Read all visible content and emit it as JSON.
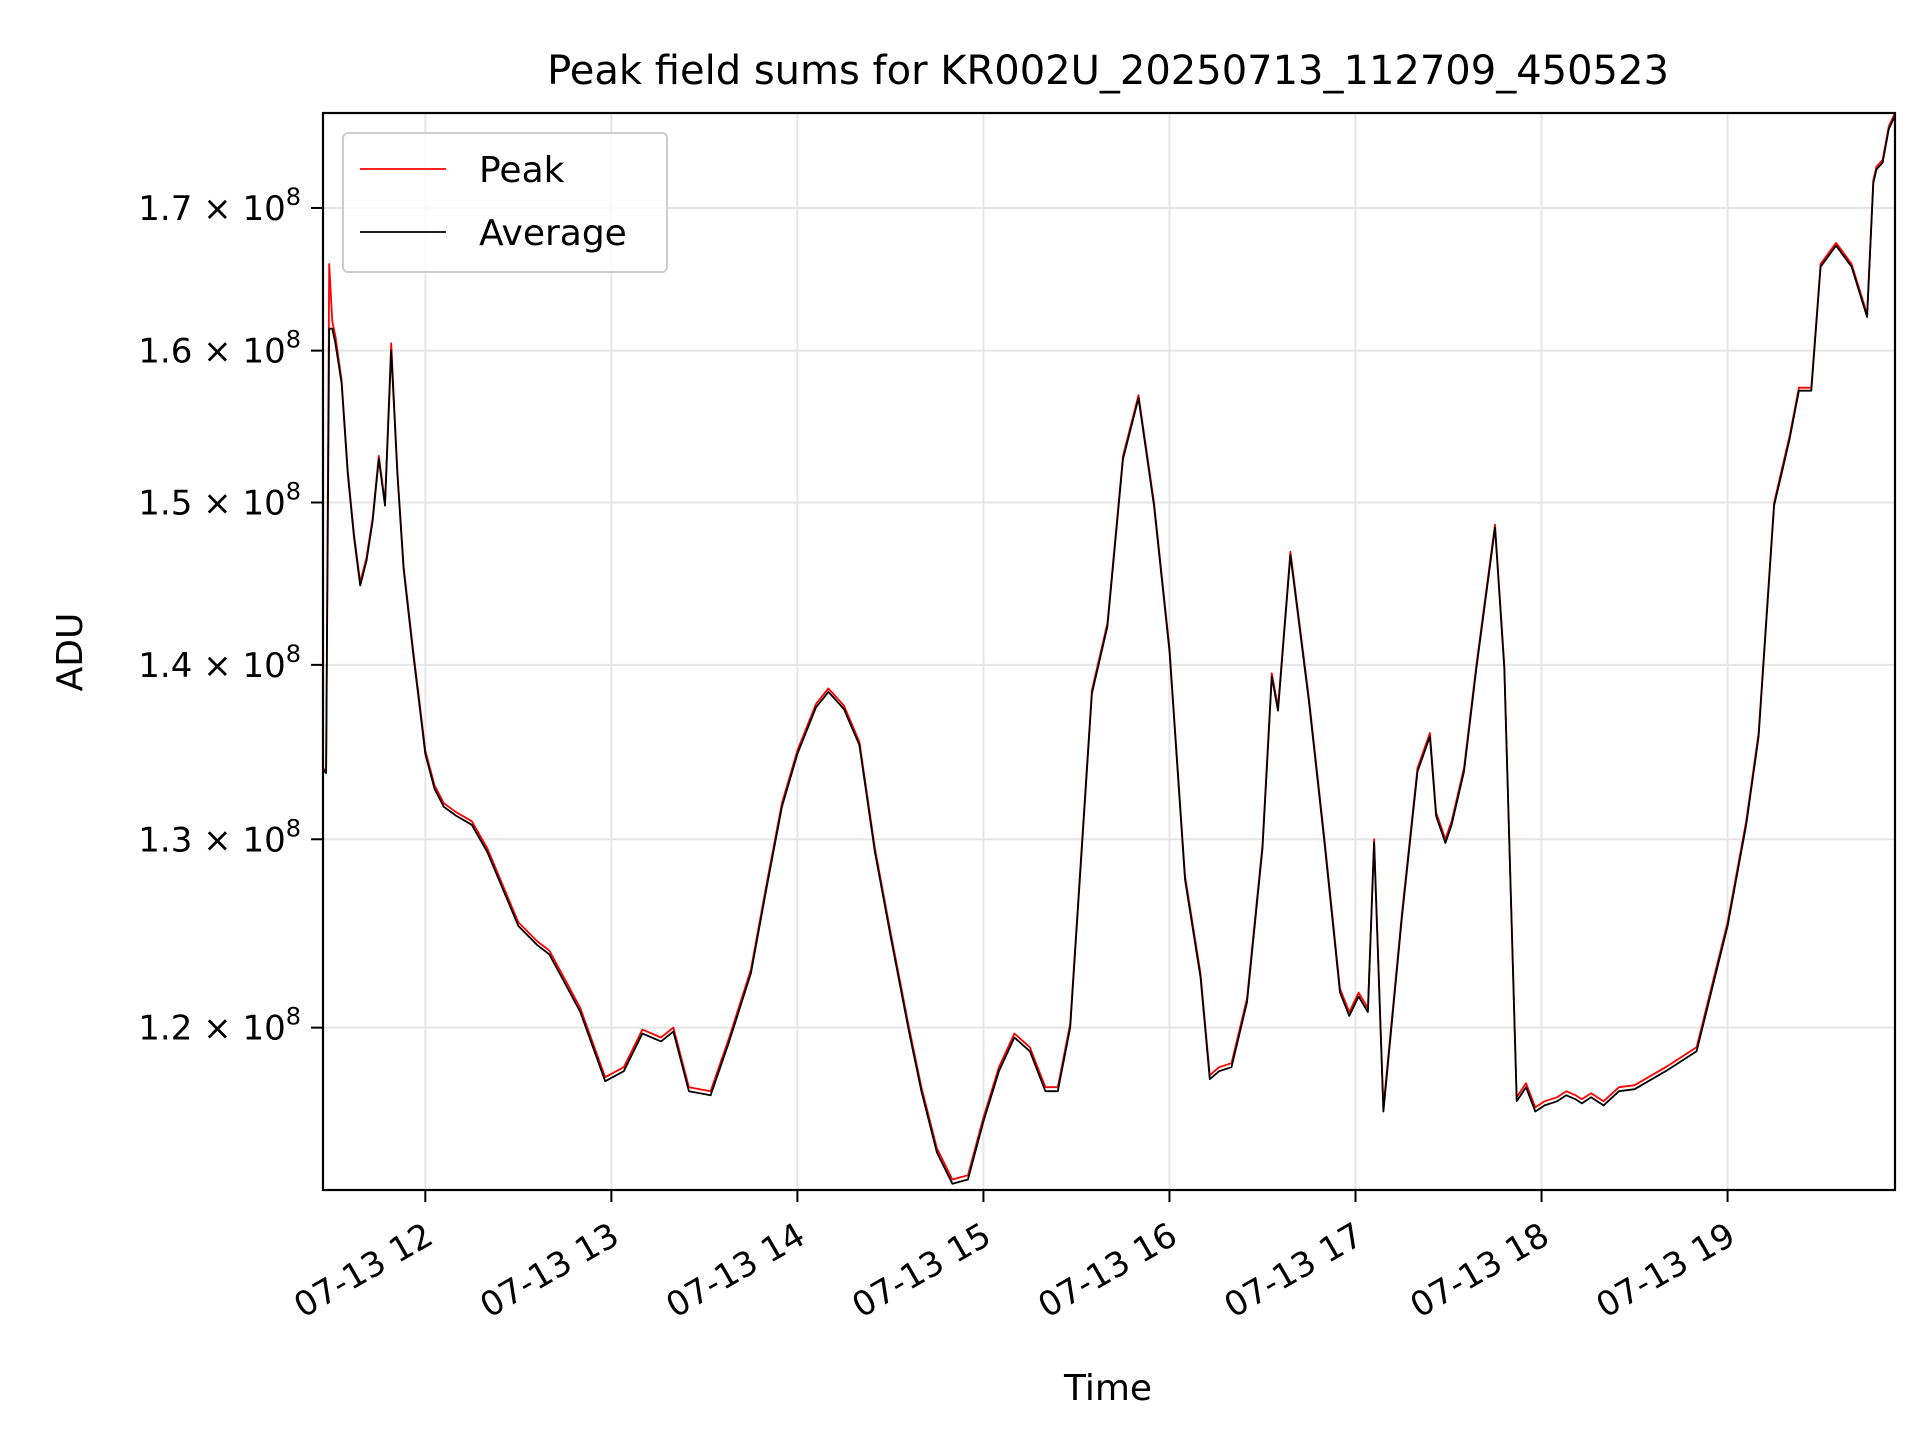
{
  "chart_data": {
    "type": "line",
    "title": "Peak field sums for KR002U_20250713_112709_450523",
    "xlabel": "Time",
    "ylabel": "ADU",
    "yscale": "log",
    "xlim": [
      "2025-07-13 11:27",
      "2025-07-13 19:54"
    ],
    "ylim": [
      112000000,
      177000000
    ],
    "grid": true,
    "legend": "top-left",
    "x_ticks": [
      {
        "value": "2025-07-13 12:00",
        "label": "07-13 12"
      },
      {
        "value": "2025-07-13 13:00",
        "label": "07-13 13"
      },
      {
        "value": "2025-07-13 14:00",
        "label": "07-13 14"
      },
      {
        "value": "2025-07-13 15:00",
        "label": "07-13 15"
      },
      {
        "value": "2025-07-13 16:00",
        "label": "07-13 16"
      },
      {
        "value": "2025-07-13 17:00",
        "label": "07-13 17"
      },
      {
        "value": "2025-07-13 18:00",
        "label": "07-13 18"
      },
      {
        "value": "2025-07-13 19:00",
        "label": "07-13 19"
      }
    ],
    "y_ticks": [
      {
        "value": 120000000,
        "mantissa": "1.2",
        "base": "10",
        "exponent": "8"
      },
      {
        "value": 130000000,
        "mantissa": "1.3",
        "base": "10",
        "exponent": "8"
      },
      {
        "value": 140000000,
        "mantissa": "1.4",
        "base": "10",
        "exponent": "8"
      },
      {
        "value": 150000000,
        "mantissa": "1.5",
        "base": "10",
        "exponent": "8"
      },
      {
        "value": 160000000,
        "mantissa": "1.6",
        "base": "10",
        "exponent": "8"
      },
      {
        "value": 170000000,
        "mantissa": "1.7",
        "base": "10",
        "exponent": "8"
      }
    ],
    "series": [
      {
        "name": "Peak",
        "color": "#ff0000",
        "x": [
          "2025-07-13 11:27",
          "2025-07-13 11:28",
          "2025-07-13 11:29",
          "2025-07-13 11:30",
          "2025-07-13 11:31",
          "2025-07-13 11:33",
          "2025-07-13 11:35",
          "2025-07-13 11:37",
          "2025-07-13 11:39",
          "2025-07-13 11:41",
          "2025-07-13 11:43",
          "2025-07-13 11:45",
          "2025-07-13 11:47",
          "2025-07-13 11:49",
          "2025-07-13 11:51",
          "2025-07-13 11:53",
          "2025-07-13 11:56",
          "2025-07-13 11:58",
          "2025-07-13 12:00",
          "2025-07-13 12:03",
          "2025-07-13 12:06",
          "2025-07-13 12:10",
          "2025-07-13 12:15",
          "2025-07-13 12:20",
          "2025-07-13 12:30",
          "2025-07-13 12:36",
          "2025-07-13 12:40",
          "2025-07-13 12:45",
          "2025-07-13 12:50",
          "2025-07-13 12:58",
          "2025-07-13 13:04",
          "2025-07-13 13:10",
          "2025-07-13 13:16",
          "2025-07-13 13:20",
          "2025-07-13 13:25",
          "2025-07-13 13:32",
          "2025-07-13 13:38",
          "2025-07-13 13:45",
          "2025-07-13 13:50",
          "2025-07-13 13:55",
          "2025-07-13 14:00",
          "2025-07-13 14:06",
          "2025-07-13 14:10",
          "2025-07-13 14:15",
          "2025-07-13 14:20",
          "2025-07-13 14:25",
          "2025-07-13 14:30",
          "2025-07-13 14:36",
          "2025-07-13 14:40",
          "2025-07-13 14:45",
          "2025-07-13 14:50",
          "2025-07-13 14:55",
          "2025-07-13 15:00",
          "2025-07-13 15:05",
          "2025-07-13 15:10",
          "2025-07-13 15:15",
          "2025-07-13 15:20",
          "2025-07-13 15:24",
          "2025-07-13 15:28",
          "2025-07-13 15:35",
          "2025-07-13 15:40",
          "2025-07-13 15:45",
          "2025-07-13 15:50",
          "2025-07-13 15:55",
          "2025-07-13 16:00",
          "2025-07-13 16:05",
          "2025-07-13 16:10",
          "2025-07-13 16:13",
          "2025-07-13 16:16",
          "2025-07-13 16:20",
          "2025-07-13 16:25",
          "2025-07-13 16:30",
          "2025-07-13 16:33",
          "2025-07-13 16:35",
          "2025-07-13 16:39",
          "2025-07-13 16:45",
          "2025-07-13 16:50",
          "2025-07-13 16:55",
          "2025-07-13 16:58",
          "2025-07-13 17:01",
          "2025-07-13 17:04",
          "2025-07-13 17:06",
          "2025-07-13 17:09",
          "2025-07-13 17:15",
          "2025-07-13 17:20",
          "2025-07-13 17:24",
          "2025-07-13 17:26",
          "2025-07-13 17:29",
          "2025-07-13 17:31",
          "2025-07-13 17:35",
          "2025-07-13 17:39",
          "2025-07-13 17:45",
          "2025-07-13 17:48",
          "2025-07-13 17:52",
          "2025-07-13 17:55",
          "2025-07-13 17:58",
          "2025-07-13 18:01",
          "2025-07-13 18:05",
          "2025-07-13 18:08",
          "2025-07-13 18:11",
          "2025-07-13 18:13",
          "2025-07-13 18:16",
          "2025-07-13 18:20",
          "2025-07-13 18:25",
          "2025-07-13 18:30",
          "2025-07-13 18:40",
          "2025-07-13 18:50",
          "2025-07-13 19:00",
          "2025-07-13 19:06",
          "2025-07-13 19:10",
          "2025-07-13 19:15",
          "2025-07-13 19:20",
          "2025-07-13 19:23",
          "2025-07-13 19:27",
          "2025-07-13 19:30",
          "2025-07-13 19:35",
          "2025-07-13 19:40",
          "2025-07-13 19:45",
          "2025-07-13 19:47",
          "2025-07-13 19:48",
          "2025-07-13 19:50",
          "2025-07-13 19:52",
          "2025-07-13 19:54"
        ],
        "y": [
          134000000,
          133800000,
          166000000,
          162000000,
          161000000,
          158000000,
          152000000,
          148000000,
          145000000,
          146500000,
          149000000,
          153000000,
          150000000,
          160500000,
          152000000,
          146000000,
          141000000,
          138000000,
          135000000,
          133000000,
          132000000,
          131500000,
          131000000,
          129500000,
          125500000,
          124500000,
          124000000,
          122500000,
          121000000,
          117500000,
          118000000,
          119900000,
          119500000,
          120000000,
          117000000,
          116800000,
          119500000,
          123000000,
          127500000,
          132000000,
          135000000,
          137700000,
          138600000,
          137600000,
          135500000,
          129500000,
          125000000,
          120000000,
          117000000,
          114000000,
          112500000,
          112700000,
          115500000,
          118000000,
          119700000,
          119000000,
          117000000,
          117000000,
          120200000,
          138500000,
          142500000,
          153000000,
          157000000,
          150000000,
          141000000,
          128000000,
          122800000,
          117600000,
          118000000,
          118200000,
          121500000,
          129700000,
          139500000,
          137500000,
          146900000,
          138000000,
          130000000,
          122000000,
          120800000,
          121800000,
          121000000,
          130000000,
          116000000,
          126000000,
          134000000,
          136000000,
          131500000,
          130000000,
          131000000,
          134000000,
          140000000,
          148600000,
          140000000,
          116500000,
          117200000,
          116000000,
          116300000,
          116500000,
          116800000,
          116600000,
          116400000,
          116700000,
          116300000,
          117000000,
          117100000,
          118000000,
          119000000,
          125500000,
          131000000,
          136000000,
          150000000,
          154300000,
          157500000,
          157500000,
          166000000,
          167500000,
          166000000,
          162500000,
          172000000,
          173000000,
          173500000,
          176000000,
          177000000
        ]
      },
      {
        "name": "Average",
        "color": "#000000",
        "x": [
          "2025-07-13 11:27",
          "2025-07-13 11:28",
          "2025-07-13 11:29",
          "2025-07-13 11:30",
          "2025-07-13 11:31",
          "2025-07-13 11:33",
          "2025-07-13 11:35",
          "2025-07-13 11:37",
          "2025-07-13 11:39",
          "2025-07-13 11:41",
          "2025-07-13 11:43",
          "2025-07-13 11:45",
          "2025-07-13 11:47",
          "2025-07-13 11:49",
          "2025-07-13 11:51",
          "2025-07-13 11:53",
          "2025-07-13 11:56",
          "2025-07-13 11:58",
          "2025-07-13 12:00",
          "2025-07-13 12:03",
          "2025-07-13 12:06",
          "2025-07-13 12:10",
          "2025-07-13 12:15",
          "2025-07-13 12:20",
          "2025-07-13 12:30",
          "2025-07-13 12:36",
          "2025-07-13 12:40",
          "2025-07-13 12:45",
          "2025-07-13 12:50",
          "2025-07-13 12:58",
          "2025-07-13 13:04",
          "2025-07-13 13:10",
          "2025-07-13 13:16",
          "2025-07-13 13:20",
          "2025-07-13 13:25",
          "2025-07-13 13:32",
          "2025-07-13 13:38",
          "2025-07-13 13:45",
          "2025-07-13 13:50",
          "2025-07-13 13:55",
          "2025-07-13 14:00",
          "2025-07-13 14:06",
          "2025-07-13 14:10",
          "2025-07-13 14:15",
          "2025-07-13 14:20",
          "2025-07-13 14:25",
          "2025-07-13 14:30",
          "2025-07-13 14:36",
          "2025-07-13 14:40",
          "2025-07-13 14:45",
          "2025-07-13 14:50",
          "2025-07-13 14:55",
          "2025-07-13 15:00",
          "2025-07-13 15:05",
          "2025-07-13 15:10",
          "2025-07-13 15:15",
          "2025-07-13 15:20",
          "2025-07-13 15:24",
          "2025-07-13 15:28",
          "2025-07-13 15:35",
          "2025-07-13 15:40",
          "2025-07-13 15:45",
          "2025-07-13 15:50",
          "2025-07-13 15:55",
          "2025-07-13 16:00",
          "2025-07-13 16:05",
          "2025-07-13 16:10",
          "2025-07-13 16:13",
          "2025-07-13 16:16",
          "2025-07-13 16:20",
          "2025-07-13 16:25",
          "2025-07-13 16:30",
          "2025-07-13 16:33",
          "2025-07-13 16:35",
          "2025-07-13 16:39",
          "2025-07-13 16:45",
          "2025-07-13 16:50",
          "2025-07-13 16:55",
          "2025-07-13 16:58",
          "2025-07-13 17:01",
          "2025-07-13 17:04",
          "2025-07-13 17:06",
          "2025-07-13 17:09",
          "2025-07-13 17:15",
          "2025-07-13 17:20",
          "2025-07-13 17:24",
          "2025-07-13 17:26",
          "2025-07-13 17:29",
          "2025-07-13 17:31",
          "2025-07-13 17:35",
          "2025-07-13 17:39",
          "2025-07-13 17:45",
          "2025-07-13 17:48",
          "2025-07-13 17:52",
          "2025-07-13 17:55",
          "2025-07-13 17:58",
          "2025-07-13 18:01",
          "2025-07-13 18:05",
          "2025-07-13 18:08",
          "2025-07-13 18:11",
          "2025-07-13 18:13",
          "2025-07-13 18:16",
          "2025-07-13 18:20",
          "2025-07-13 18:25",
          "2025-07-13 18:30",
          "2025-07-13 18:40",
          "2025-07-13 18:50",
          "2025-07-13 19:00",
          "2025-07-13 19:06",
          "2025-07-13 19:10",
          "2025-07-13 19:15",
          "2025-07-13 19:20",
          "2025-07-13 19:23",
          "2025-07-13 19:27",
          "2025-07-13 19:30",
          "2025-07-13 19:35",
          "2025-07-13 19:40",
          "2025-07-13 19:45",
          "2025-07-13 19:47",
          "2025-07-13 19:48",
          "2025-07-13 19:50",
          "2025-07-13 19:52",
          "2025-07-13 19:54"
        ],
        "y": [
          133900000,
          133700000,
          161500000,
          161500000,
          160500000,
          157800000,
          151800000,
          147800000,
          144800000,
          146300000,
          148800000,
          152800000,
          149800000,
          160000000,
          151800000,
          145800000,
          140800000,
          137800000,
          134800000,
          132800000,
          131800000,
          131300000,
          130800000,
          129300000,
          125300000,
          124300000,
          123800000,
          122300000,
          120800000,
          117300000,
          117800000,
          119700000,
          119300000,
          119800000,
          116800000,
          116600000,
          119300000,
          122800000,
          127300000,
          131800000,
          134800000,
          137500000,
          138400000,
          137400000,
          135300000,
          129300000,
          124800000,
          119800000,
          116800000,
          113800000,
          112300000,
          112500000,
          115300000,
          117800000,
          119500000,
          118800000,
          116800000,
          116800000,
          120000000,
          138300000,
          142300000,
          152800000,
          156800000,
          149800000,
          140800000,
          127800000,
          122600000,
          117400000,
          117800000,
          118000000,
          121300000,
          129500000,
          139300000,
          137300000,
          146700000,
          137800000,
          129800000,
          121800000,
          120600000,
          121600000,
          120800000,
          129800000,
          115800000,
          125800000,
          133800000,
          135800000,
          131300000,
          129800000,
          130800000,
          133800000,
          139800000,
          148400000,
          139800000,
          116300000,
          117000000,
          115800000,
          116100000,
          116300000,
          116600000,
          116400000,
          116200000,
          116500000,
          116100000,
          116800000,
          116900000,
          117800000,
          118800000,
          125300000,
          130800000,
          135800000,
          149800000,
          154100000,
          157300000,
          157300000,
          165800000,
          167300000,
          165800000,
          162300000,
          171800000,
          172800000,
          173300000,
          175800000,
          176800000
        ]
      }
    ]
  }
}
